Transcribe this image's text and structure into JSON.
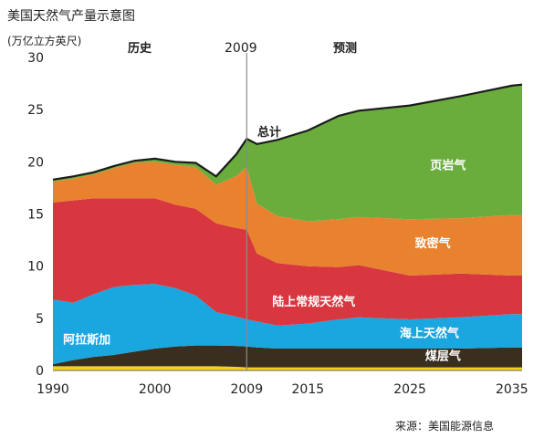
{
  "chart_data": {
    "type": "area",
    "stacked": true,
    "title": "美国天然气产量示意图",
    "ylabel": "(万亿立方英尺)",
    "xlabel": "",
    "x_ticks": [
      1990,
      2000,
      2009,
      2015,
      2025,
      2035
    ],
    "y_ticks": [
      0,
      5,
      10,
      15,
      20,
      25,
      30
    ],
    "xlim": [
      1990,
      2036
    ],
    "ylim": [
      0,
      30
    ],
    "grid": false,
    "divider": {
      "x": 2009,
      "label": "2009"
    },
    "era_labels": {
      "history": "历史",
      "forecast": "预测"
    },
    "total_label": "总计",
    "source": "来源：美国能源信息",
    "x": [
      1990,
      1992,
      1994,
      1996,
      1998,
      2000,
      2002,
      2004,
      2006,
      2008,
      2009,
      2010,
      2012,
      2015,
      2018,
      2020,
      2025,
      2030,
      2035,
      2036
    ],
    "series": [
      {
        "name": "阿拉斯加",
        "color": "#f2d21b",
        "label_color": "#ffffff",
        "label_at": [
          1991,
          2.6
        ],
        "values": [
          0.4,
          0.4,
          0.4,
          0.4,
          0.4,
          0.4,
          0.4,
          0.4,
          0.4,
          0.35,
          0.3,
          0.3,
          0.3,
          0.3,
          0.3,
          0.3,
          0.3,
          0.3,
          0.3,
          0.3
        ]
      },
      {
        "name": "煤层气",
        "color": "#3a2f1f",
        "label_color": "#ffffff",
        "label_at": [
          2026.5,
          1.0
        ],
        "values": [
          0.2,
          0.6,
          0.9,
          1.1,
          1.4,
          1.7,
          1.9,
          2.0,
          2.0,
          2.0,
          2.0,
          1.9,
          1.8,
          1.8,
          1.8,
          1.8,
          1.8,
          1.8,
          1.9,
          1.9
        ]
      },
      {
        "name": "海上天然气",
        "color": "#1aa6df",
        "label_color": "#ffffff",
        "label_at": [
          2024,
          3.2
        ],
        "values": [
          6.2,
          5.5,
          6.0,
          6.5,
          6.4,
          6.2,
          5.6,
          4.8,
          3.2,
          2.8,
          2.6,
          2.5,
          2.2,
          2.4,
          2.8,
          3.0,
          2.8,
          3.0,
          3.2,
          3.2
        ]
      },
      {
        "name": "陆上常规天然气",
        "color": "#d9373f",
        "label_color": "#ffffff",
        "label_at": [
          2011.5,
          6.2
        ],
        "values": [
          9.3,
          9.8,
          9.2,
          8.5,
          8.3,
          8.2,
          8.0,
          8.3,
          8.5,
          8.5,
          8.6,
          6.5,
          6.0,
          5.5,
          5.0,
          5.0,
          4.2,
          4.2,
          3.7,
          3.7
        ]
      },
      {
        "name": "致密气",
        "color": "#e8822f",
        "label_color": "#ffffff",
        "label_at": [
          2025.5,
          11.8
        ],
        "values": [
          2.0,
          2.1,
          2.3,
          2.9,
          3.4,
          3.5,
          3.8,
          4.0,
          3.7,
          5.0,
          6.0,
          4.8,
          4.5,
          4.3,
          4.6,
          4.6,
          5.4,
          5.3,
          5.8,
          5.8
        ]
      },
      {
        "name": "页岩气",
        "color": "#6aad3d",
        "label_color": "#ffffff",
        "label_at": [
          2027,
          19.3
        ],
        "values": [
          0.2,
          0.2,
          0.2,
          0.2,
          0.2,
          0.3,
          0.3,
          0.4,
          0.8,
          2.1,
          2.7,
          5.7,
          7.3,
          8.7,
          9.9,
          10.2,
          10.9,
          11.7,
          12.4,
          12.5
        ]
      }
    ]
  }
}
